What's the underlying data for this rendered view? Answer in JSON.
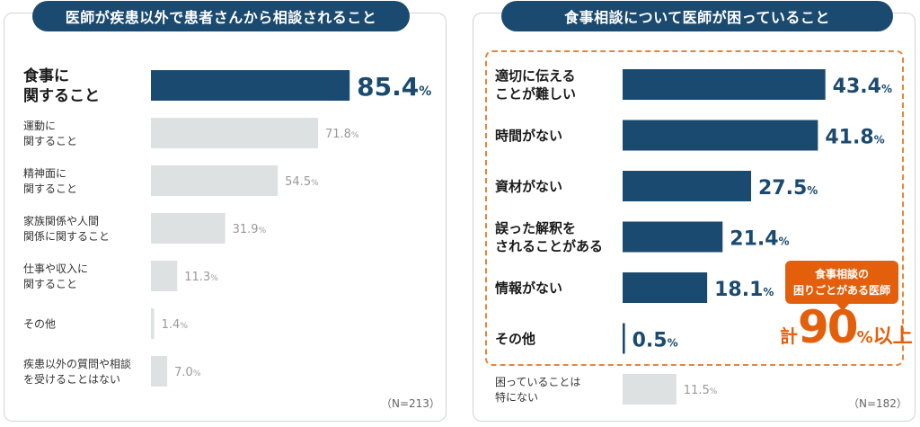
{
  "chart_data": [
    {
      "type": "bar",
      "orientation": "horizontal",
      "title": "医師が疾患以外で患者さんから相談されること",
      "n_label": "（N=213）",
      "unit": "%",
      "xlim": [
        0,
        100
      ],
      "categories": [
        {
          "label": [
            "食事に",
            "関すること"
          ],
          "value": 85.4,
          "highlight": true
        },
        {
          "label": [
            "運動に",
            "関すること"
          ],
          "value": 71.8,
          "highlight": false
        },
        {
          "label": [
            "精神面に",
            "関すること"
          ],
          "value": 54.5,
          "highlight": false
        },
        {
          "label": [
            "家族関係や人間",
            "関係に関すること"
          ],
          "value": 31.9,
          "highlight": false
        },
        {
          "label": [
            "仕事や収入に",
            "関すること"
          ],
          "value": 11.3,
          "highlight": false
        },
        {
          "label": [
            "その他"
          ],
          "value": 1.4,
          "highlight": false
        },
        {
          "label": [
            "疾患以外の質問や相談",
            "を受けることはない"
          ],
          "value": 7.0,
          "highlight": false
        }
      ]
    },
    {
      "type": "bar",
      "orientation": "horizontal",
      "title": "食事相談について医師が困っていること",
      "n_label": "（N=182）",
      "unit": "%",
      "xlim": [
        0,
        50
      ],
      "categories": [
        {
          "label": [
            "適切に伝える",
            "ことが難しい"
          ],
          "value": 43.4,
          "highlight": true
        },
        {
          "label": [
            "時間がない"
          ],
          "value": 41.8,
          "highlight": true
        },
        {
          "label": [
            "資材がない"
          ],
          "value": 27.5,
          "highlight": true
        },
        {
          "label": [
            "誤った解釈を",
            "されることがある"
          ],
          "value": 21.4,
          "highlight": true
        },
        {
          "label": [
            "情報がない"
          ],
          "value": 18.1,
          "highlight": true
        },
        {
          "label": [
            "その他"
          ],
          "value": 0.5,
          "highlight": true
        },
        {
          "label": [
            "困っていることは",
            "特にない"
          ],
          "value": 11.5,
          "highlight": false
        }
      ],
      "callout": {
        "text": [
          "食事相談の",
          "困りごとがある医師"
        ],
        "total_prefix": "計",
        "total_value": "90",
        "total_unit": "%",
        "total_suffix": "以上"
      }
    }
  ],
  "colors": {
    "highlight": "#1b4a70",
    "muted": "#dde1e2",
    "muted_text": "#999999",
    "accent": "#e35f0c",
    "dashed": "#e8843a"
  }
}
